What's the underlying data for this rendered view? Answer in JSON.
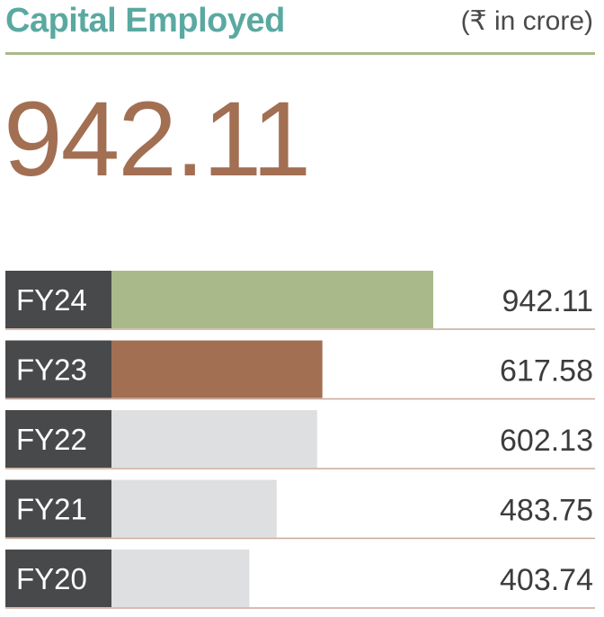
{
  "header": {
    "title": "Capital Employed",
    "unit": "(₹ in crore)"
  },
  "highlight_value": "942.11",
  "colors": {
    "title": "#5aa9a1",
    "rule": "#a9b98a",
    "highlight_value": "#a26f53",
    "label_bg": "#48494b",
    "bar_current": "#a9b98a",
    "bar_previous": "#a26f53",
    "bar_other": "#dedfe0",
    "row_divider": "#c9a89a"
  },
  "chart_data": {
    "type": "bar",
    "orientation": "horizontal",
    "categories": [
      "FY24",
      "FY23",
      "FY22",
      "FY21",
      "FY20"
    ],
    "values": [
      942.11,
      617.58,
      602.13,
      483.75,
      403.74
    ],
    "value_labels": [
      "942.11",
      "617.58",
      "602.13",
      "483.75",
      "403.74"
    ],
    "title": "Capital Employed",
    "unit": "(₹ in crore)",
    "xlim": [
      0,
      1200
    ]
  }
}
